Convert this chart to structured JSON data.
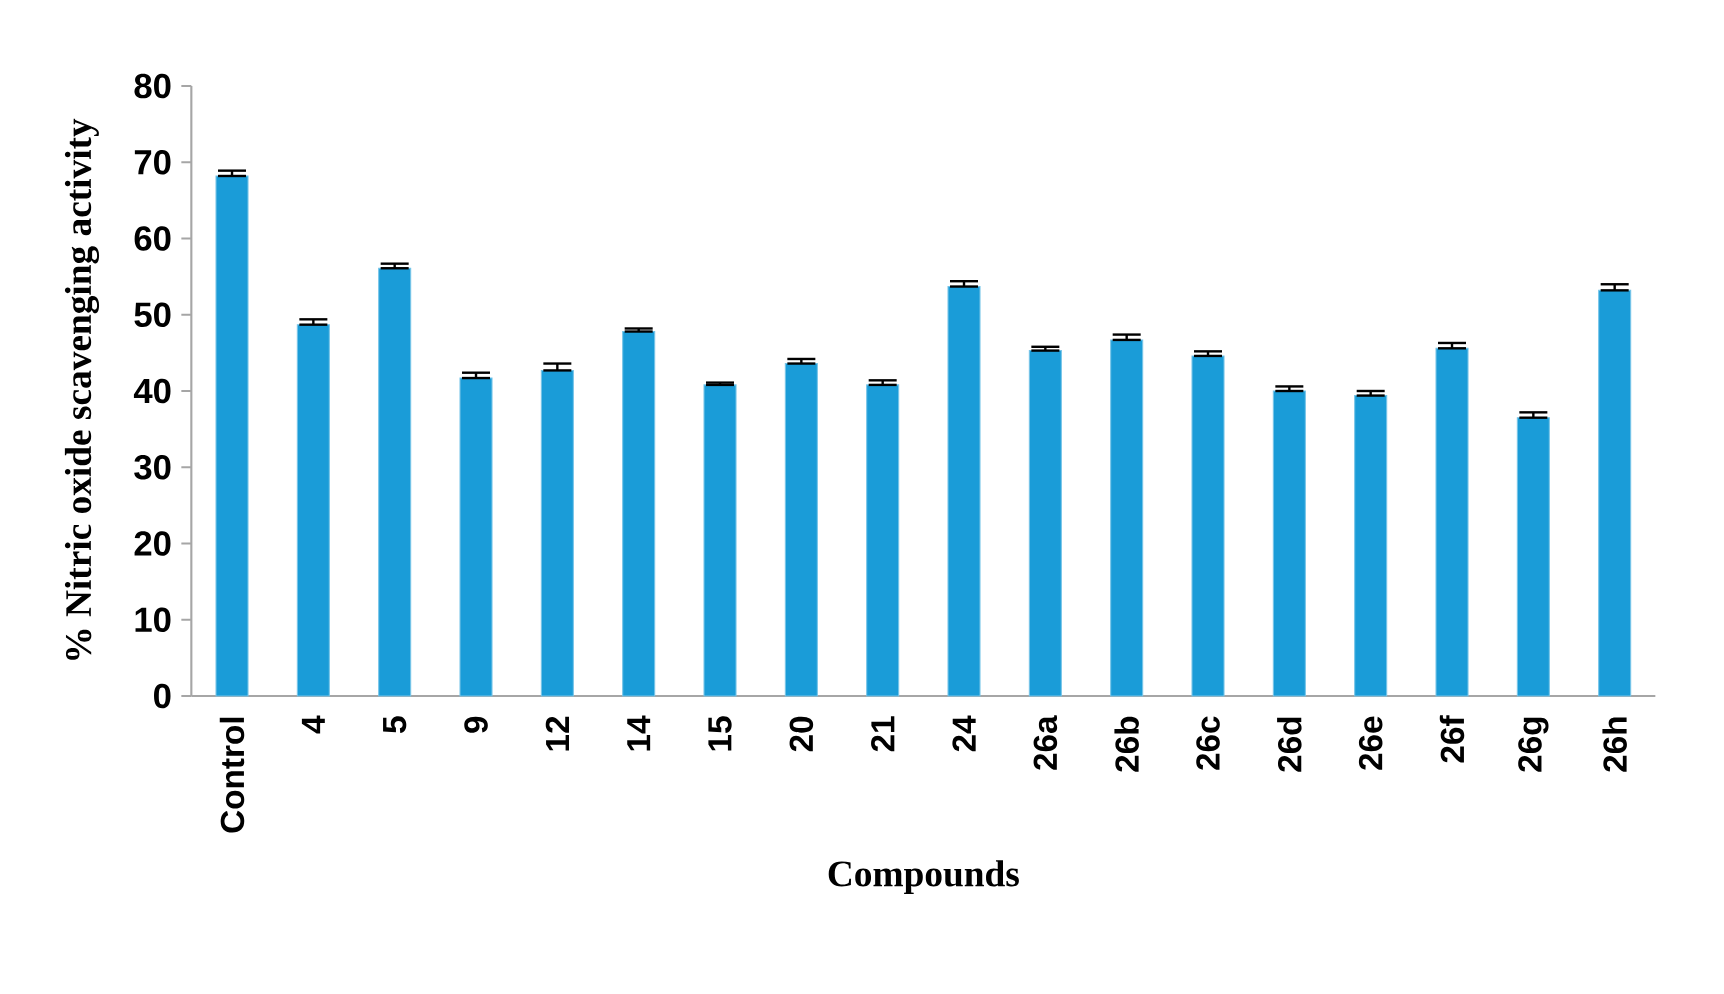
{
  "chart_data": {
    "type": "bar",
    "xlabel": "Compounds",
    "ylabel": "% Nitric oxide scavenging  activity",
    "categories": [
      "Control",
      "4",
      "5",
      "9",
      "12",
      "14",
      "15",
      "20",
      "21",
      "24",
      "26a",
      "26b",
      "26c",
      "26d",
      "26e",
      "26f",
      "26g",
      "26h"
    ],
    "values": [
      68.2,
      48.7,
      56.1,
      41.7,
      42.7,
      47.8,
      40.8,
      43.6,
      40.8,
      53.7,
      45.3,
      46.7,
      44.6,
      40.0,
      39.4,
      45.6,
      36.5,
      53.2
    ],
    "errors": [
      [
        68.2,
        68.9
      ],
      [
        48.7,
        49.4
      ],
      [
        56.1,
        56.7
      ],
      [
        41.7,
        42.4
      ],
      [
        42.7,
        43.6
      ],
      [
        47.8,
        48.2
      ],
      [
        40.8,
        41.1
      ],
      [
        43.6,
        44.2
      ],
      [
        40.8,
        41.4
      ],
      [
        53.7,
        54.4
      ],
      [
        45.3,
        45.8
      ],
      [
        46.7,
        47.4
      ],
      [
        44.6,
        45.2
      ],
      [
        40.0,
        40.6
      ],
      [
        39.4,
        40.0
      ],
      [
        45.6,
        46.3
      ],
      [
        36.5,
        37.2
      ],
      [
        53.2,
        54.0
      ]
    ],
    "color": "#1a9cd8",
    "ylim": [
      0,
      80
    ],
    "yticks": [
      0,
      10,
      20,
      30,
      40,
      50,
      60,
      70,
      80
    ],
    "grid": false
  }
}
